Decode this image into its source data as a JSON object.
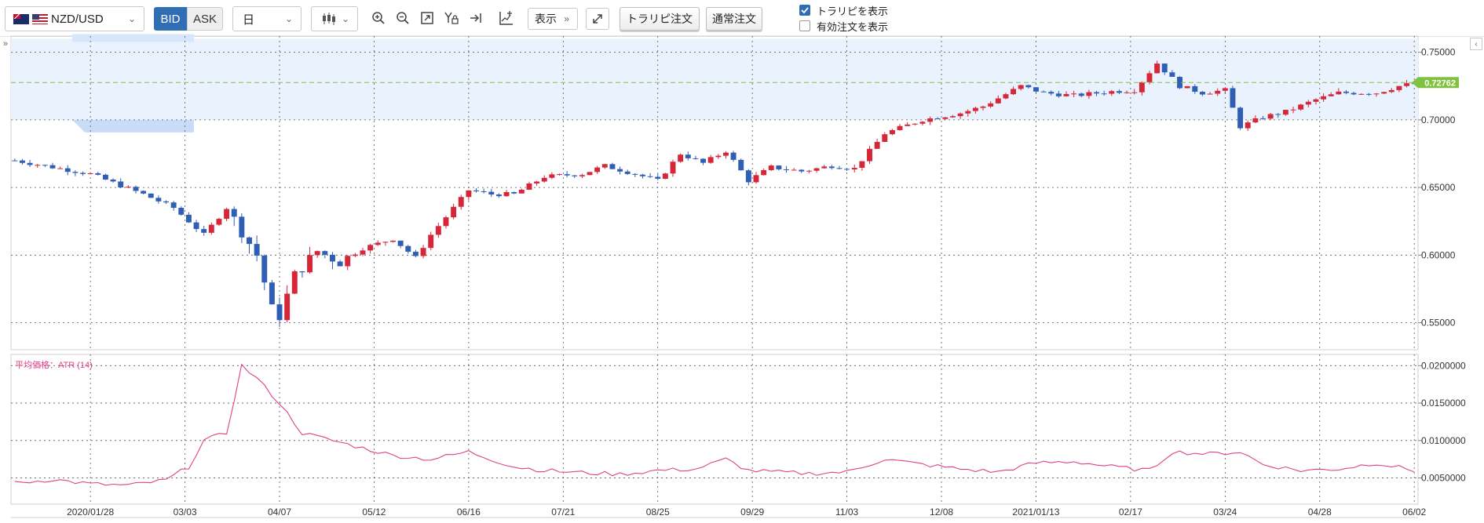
{
  "toolbar": {
    "symbol": "NZD/USD",
    "bid_label": "BID",
    "ask_label": "ASK",
    "timeframe": "日",
    "display_label": "表示",
    "trail_order": "トラリピ注文",
    "normal_order": "通常注文",
    "show_trail": "トラリピを表示",
    "show_active": "有効注文を表示",
    "show_trail_checked": true,
    "show_active_checked": false
  },
  "chart_data": [
    {
      "type": "candlestick",
      "current_price_label": "0.72762",
      "y_ticks": [
        "0.75000",
        "0.70000",
        "0.65000",
        "0.60000",
        "0.55000"
      ],
      "ylim": [
        0.53,
        0.762
      ],
      "x_ticks": [
        "2020/01/28",
        "03/03",
        "04/07",
        "05/12",
        "06/16",
        "07/21",
        "08/25",
        "09/29",
        "11/03",
        "12/08",
        "2021/01/13",
        "02/17",
        "03/24",
        "04/28",
        "06/02"
      ],
      "trail_range": [
        0.7,
        0.76
      ],
      "colors": {
        "up": "#d6263a",
        "down": "#2f5fb4",
        "range": "#eaf2fd",
        "price_tag": "#7fc241",
        "price_line": "#7fc241"
      },
      "close_path": [
        [
          0,
          0.67
        ],
        [
          5,
          0.665
        ],
        [
          10,
          0.66
        ],
        [
          17,
          0.645
        ],
        [
          21,
          0.635
        ],
        [
          25,
          0.615
        ],
        [
          28,
          0.635
        ],
        [
          32,
          0.6
        ],
        [
          34,
          0.56
        ],
        [
          35,
          0.555
        ],
        [
          37,
          0.585
        ],
        [
          40,
          0.603
        ],
        [
          43,
          0.595
        ],
        [
          46,
          0.605
        ],
        [
          50,
          0.612
        ],
        [
          53,
          0.598
        ],
        [
          55,
          0.615
        ],
        [
          60,
          0.648
        ],
        [
          63,
          0.645
        ],
        [
          66,
          0.645
        ],
        [
          70,
          0.658
        ],
        [
          75,
          0.66
        ],
        [
          78,
          0.666
        ],
        [
          82,
          0.66
        ],
        [
          85,
          0.655
        ],
        [
          88,
          0.675
        ],
        [
          91,
          0.668
        ],
        [
          94,
          0.677
        ],
        [
          97,
          0.655
        ],
        [
          100,
          0.665
        ],
        [
          104,
          0.662
        ],
        [
          108,
          0.666
        ],
        [
          111,
          0.664
        ],
        [
          115,
          0.69
        ],
        [
          120,
          0.7
        ],
        [
          125,
          0.705
        ],
        [
          128,
          0.71
        ],
        [
          133,
          0.725
        ],
        [
          136,
          0.72
        ],
        [
          140,
          0.718
        ],
        [
          145,
          0.721
        ],
        [
          148,
          0.722
        ],
        [
          151,
          0.742
        ],
        [
          154,
          0.725
        ],
        [
          157,
          0.72
        ],
        [
          160,
          0.722
        ],
        [
          162,
          0.695
        ],
        [
          165,
          0.702
        ],
        [
          168,
          0.706
        ],
        [
          172,
          0.715
        ],
        [
          175,
          0.72
        ],
        [
          180,
          0.72
        ],
        [
          183,
          0.725
        ],
        [
          185,
          0.727
        ]
      ]
    },
    {
      "type": "line",
      "title": "平均価格：ATR (14)",
      "y_ticks": [
        "0.0200000",
        "0.0150000",
        "0.0100000",
        "0.0050000"
      ],
      "ylim": [
        0.0015,
        0.0215
      ],
      "color": "#e0408a",
      "path": [
        [
          0,
          0.0043
        ],
        [
          5,
          0.0048
        ],
        [
          10,
          0.0042
        ],
        [
          15,
          0.004
        ],
        [
          20,
          0.0047
        ],
        [
          23,
          0.0065
        ],
        [
          25,
          0.01
        ],
        [
          28,
          0.011
        ],
        [
          30,
          0.02
        ],
        [
          32,
          0.0183
        ],
        [
          35,
          0.015
        ],
        [
          38,
          0.011
        ],
        [
          42,
          0.01
        ],
        [
          46,
          0.009
        ],
        [
          50,
          0.008
        ],
        [
          55,
          0.0075
        ],
        [
          60,
          0.0085
        ],
        [
          63,
          0.0075
        ],
        [
          66,
          0.0065
        ],
        [
          70,
          0.006
        ],
        [
          75,
          0.0057
        ],
        [
          80,
          0.0055
        ],
        [
          85,
          0.006
        ],
        [
          90,
          0.0062
        ],
        [
          94,
          0.0075
        ],
        [
          97,
          0.006
        ],
        [
          100,
          0.0058
        ],
        [
          105,
          0.0056
        ],
        [
          110,
          0.0058
        ],
        [
          115,
          0.0075
        ],
        [
          120,
          0.0068
        ],
        [
          125,
          0.0062
        ],
        [
          130,
          0.0058
        ],
        [
          135,
          0.007
        ],
        [
          140,
          0.0072
        ],
        [
          145,
          0.0065
        ],
        [
          150,
          0.006
        ],
        [
          153,
          0.0085
        ],
        [
          158,
          0.0082
        ],
        [
          162,
          0.0085
        ],
        [
          165,
          0.0068
        ],
        [
          170,
          0.006
        ],
        [
          175,
          0.0062
        ],
        [
          180,
          0.007
        ],
        [
          185,
          0.006
        ]
      ]
    }
  ]
}
